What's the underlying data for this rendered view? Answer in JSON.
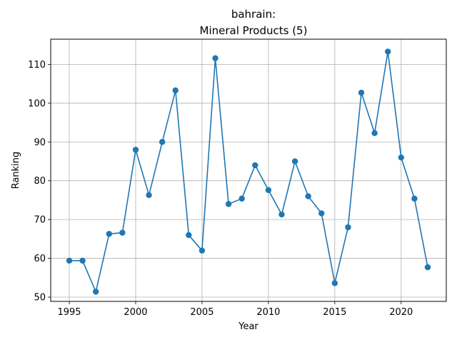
{
  "chart_data": {
    "type": "line",
    "title_line1": "bahrain:",
    "title_line2": "Mineral Products (5)",
    "xlabel": "Year",
    "ylabel": "Ranking",
    "xlim": [
      1993.6,
      2023.4
    ],
    "ylim": [
      48.9,
      116.5
    ],
    "xticks": [
      1995,
      2000,
      2005,
      2010,
      2015,
      2020
    ],
    "yticks": [
      50,
      60,
      70,
      80,
      90,
      100,
      110
    ],
    "grid": true,
    "color": "#1f77b4",
    "series": [
      {
        "x": [
          1995,
          1996,
          1997,
          1998,
          1999,
          2000,
          2001,
          2002,
          2003,
          2004,
          2005,
          2006,
          2007,
          2008,
          2009,
          2010,
          2011,
          2012,
          2013,
          2014,
          2015,
          2016,
          2017,
          2018,
          2019,
          2020,
          2021,
          2022
        ],
        "y": [
          59.4,
          59.4,
          51.4,
          66.3,
          66.6,
          88.0,
          76.3,
          90.0,
          103.3,
          66.0,
          62.0,
          111.6,
          74.0,
          75.4,
          84.0,
          77.6,
          71.3,
          85.0,
          76.0,
          71.6,
          53.6,
          68.0,
          102.7,
          92.3,
          113.3,
          86.0,
          75.4,
          57.7
        ]
      }
    ]
  }
}
